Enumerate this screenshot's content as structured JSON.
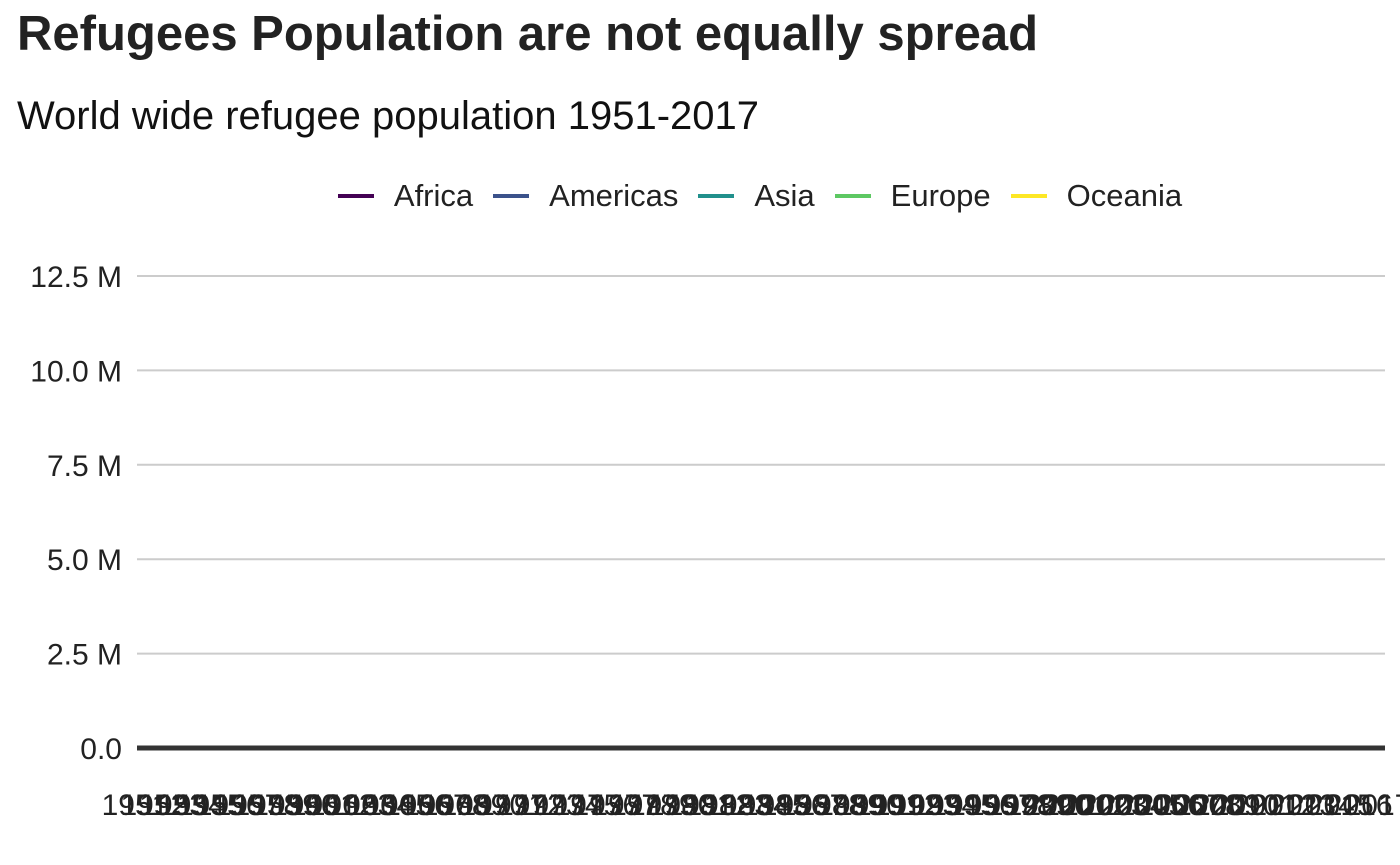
{
  "chart_data": {
    "type": "line",
    "title": "Refugees Population are not equally spread",
    "subtitle": "World wide refugee population 1951-2017",
    "xlabel": "",
    "ylabel": "",
    "ylim": [
      0,
      12500000
    ],
    "y_ticks": [
      {
        "value": 0,
        "label": "0.0"
      },
      {
        "value": 2500000,
        "label": "2.5 M"
      },
      {
        "value": 5000000,
        "label": "5.0 M"
      },
      {
        "value": 7500000,
        "label": "7.5 M"
      },
      {
        "value": 10000000,
        "label": "10.0 M"
      },
      {
        "value": 12500000,
        "label": "12.5 M"
      }
    ],
    "x_start": 1951,
    "x_end": 2017,
    "grid": "horizontal",
    "legend_position": "top",
    "series": [
      {
        "name": "Africa",
        "color": "#440154"
      },
      {
        "name": "Americas",
        "color": "#3b528b"
      },
      {
        "name": "Asia",
        "color": "#21908c"
      },
      {
        "name": "Europe",
        "color": "#5dc863"
      },
      {
        "name": "Oceania",
        "color": "#fde725"
      }
    ],
    "x": [
      1951,
      1952,
      1953,
      1954,
      1955,
      1956,
      1957,
      1958,
      1959,
      1960,
      1961,
      1962,
      1963,
      1964,
      1965,
      1966,
      1967,
      1968,
      1969,
      1970,
      1971,
      1972,
      1973,
      1974,
      1975,
      1976,
      1977,
      1978,
      1979,
      1980,
      1981,
      1982,
      1983,
      1984,
      1985,
      1986,
      1987,
      1988,
      1989,
      1990,
      1991,
      1992,
      1993,
      1994,
      1995,
      1996,
      1997,
      1998,
      1999,
      2000,
      2001,
      2002,
      2003,
      2004,
      2005,
      2006,
      2007,
      2008,
      2009,
      2010,
      2011,
      2012,
      2013,
      2014,
      2015,
      2016,
      2017
    ]
  }
}
